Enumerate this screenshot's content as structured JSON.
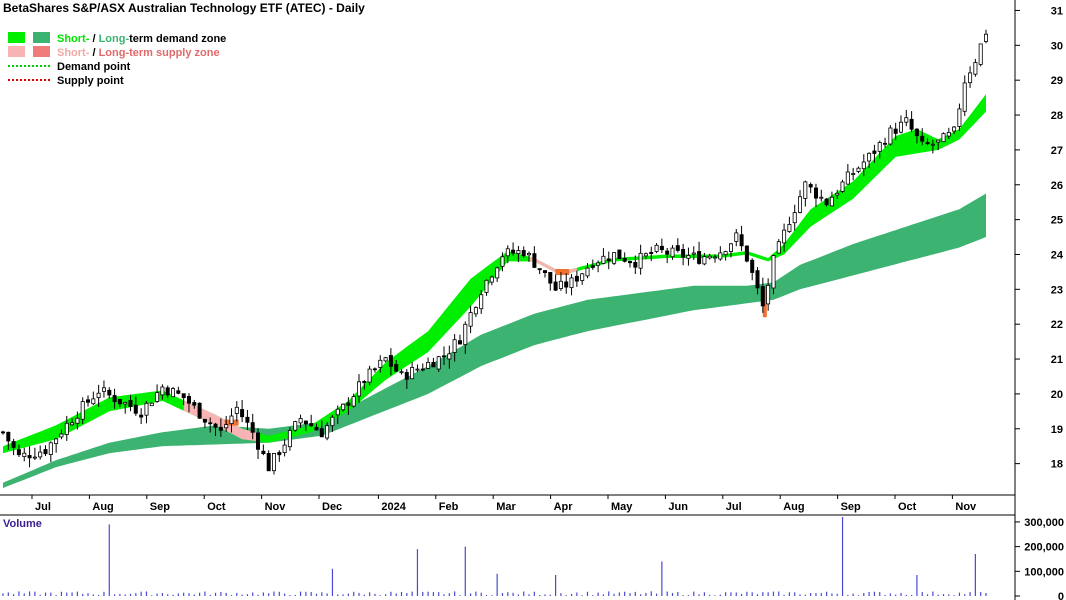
{
  "title": "BetaShares S&P/ASX Australian Technology ETF (ATEC) - Daily",
  "legend": [
    {
      "pre": "Short-",
      "mid": " / ",
      "post": "Long-",
      "tail": "term demand zone",
      "pre_color": "#00e600",
      "post_color": "#3cb371",
      "tail_color": "#000000",
      "swatch_short": "#00ee00",
      "swatch_long": "#3cb371",
      "style": "zone"
    },
    {
      "pre": "Short-",
      "mid": " / ",
      "post": "Long-",
      "tail": "term supply zone",
      "pre_color": "#f4a7a7",
      "post_color": "#e06a6a",
      "tail_color": "#e06a6a",
      "swatch_short": "#f8b4b4",
      "swatch_long": "#ef7b7b",
      "style": "zone"
    },
    {
      "label": "Demand point",
      "color": "#00cc00",
      "style": "dotted"
    },
    {
      "label": "Supply point",
      "color": "#dd0000",
      "style": "dotted"
    }
  ],
  "volume_label": "Volume",
  "colors": {
    "short_demand": "#00ee00",
    "long_demand": "#3cb371",
    "short_supply": "#f8b4b4",
    "crossover": "#f07030",
    "volume_bar": "#4a4ad0",
    "candle": "#000000"
  },
  "chart_data": {
    "type": "candlestick",
    "price_axis": {
      "ylim": [
        17.1,
        31.3
      ],
      "ticks": [
        18,
        19,
        20,
        21,
        22,
        23,
        24,
        25,
        26,
        27,
        28,
        29,
        30,
        31
      ]
    },
    "x_labels": [
      "Jul",
      "Aug",
      "Sep",
      "Oct",
      "Nov",
      "Dec",
      "2024",
      "Feb",
      "Mar",
      "Apr",
      "May",
      "Jun",
      "Jul",
      "Aug",
      "Sep",
      "Oct",
      "Nov"
    ],
    "close_path": [
      [
        0,
        18.9
      ],
      [
        3,
        18.2
      ],
      [
        8,
        18.4
      ],
      [
        13,
        19.3
      ],
      [
        18,
        20.1
      ],
      [
        22,
        19.8
      ],
      [
        26,
        19.5
      ],
      [
        30,
        20.2
      ],
      [
        34,
        19.9
      ],
      [
        38,
        19.3
      ],
      [
        41,
        18.9
      ],
      [
        44,
        19.6
      ],
      [
        47,
        18.9
      ],
      [
        50,
        17.9
      ],
      [
        53,
        18.6
      ],
      [
        56,
        19.3
      ],
      [
        60,
        18.9
      ],
      [
        64,
        19.6
      ],
      [
        68,
        20.4
      ],
      [
        72,
        21.0
      ],
      [
        75,
        20.5
      ],
      [
        79,
        20.8
      ],
      [
        83,
        21.1
      ],
      [
        86,
        21.6
      ],
      [
        90,
        23.0
      ],
      [
        94,
        24.0
      ],
      [
        98,
        24.1
      ],
      [
        101,
        23.6
      ],
      [
        104,
        23.0
      ],
      [
        107,
        23.2
      ],
      [
        111,
        23.8
      ],
      [
        115,
        24.0
      ],
      [
        119,
        23.8
      ],
      [
        123,
        24.1
      ],
      [
        127,
        24.0
      ],
      [
        131,
        23.9
      ],
      [
        135,
        24.1
      ],
      [
        138,
        24.5
      ],
      [
        140,
        23.9
      ],
      [
        143,
        22.5
      ],
      [
        145,
        23.8
      ],
      [
        148,
        25.0
      ],
      [
        151,
        26.0
      ],
      [
        155,
        25.5
      ],
      [
        159,
        26.2
      ],
      [
        163,
        26.8
      ],
      [
        167,
        27.5
      ],
      [
        170,
        27.8
      ],
      [
        173,
        27.1
      ],
      [
        176,
        27.2
      ],
      [
        179,
        27.5
      ],
      [
        181,
        29.0
      ],
      [
        183,
        29.6
      ],
      [
        185,
        30.4
      ]
    ],
    "short_zone": {
      "lower": [
        [
          0,
          18.3
        ],
        [
          10,
          18.7
        ],
        [
          20,
          19.5
        ],
        [
          30,
          19.8
        ],
        [
          40,
          19.1
        ],
        [
          45,
          18.7
        ],
        [
          50,
          18.6
        ],
        [
          58,
          18.9
        ],
        [
          65,
          19.5
        ],
        [
          72,
          20.4
        ],
        [
          80,
          21.2
        ],
        [
          88,
          22.5
        ],
        [
          95,
          23.8
        ],
        [
          100,
          23.8
        ],
        [
          105,
          23.4
        ],
        [
          110,
          23.6
        ],
        [
          115,
          23.8
        ],
        [
          125,
          23.9
        ],
        [
          135,
          23.9
        ],
        [
          140,
          24.0
        ],
        [
          144,
          23.8
        ],
        [
          147,
          24.0
        ],
        [
          152,
          24.8
        ],
        [
          160,
          25.6
        ],
        [
          168,
          26.8
        ],
        [
          172,
          26.9
        ],
        [
          176,
          27.0
        ],
        [
          180,
          27.3
        ],
        [
          185,
          28.1
        ]
      ],
      "upper": [
        [
          0,
          18.5
        ],
        [
          10,
          19.1
        ],
        [
          20,
          19.9
        ],
        [
          30,
          20.1
        ],
        [
          40,
          19.4
        ],
        [
          45,
          19.0
        ],
        [
          50,
          18.8
        ],
        [
          58,
          19.1
        ],
        [
          65,
          19.8
        ],
        [
          72,
          20.9
        ],
        [
          80,
          21.8
        ],
        [
          88,
          23.3
        ],
        [
          95,
          24.1
        ],
        [
          100,
          23.9
        ],
        [
          105,
          23.5
        ],
        [
          110,
          23.7
        ],
        [
          115,
          23.9
        ],
        [
          125,
          24.0
        ],
        [
          135,
          24.0
        ],
        [
          140,
          24.1
        ],
        [
          144,
          23.9
        ],
        [
          147,
          24.3
        ],
        [
          152,
          25.3
        ],
        [
          160,
          26.1
        ],
        [
          168,
          27.4
        ],
        [
          172,
          27.6
        ],
        [
          176,
          27.3
        ],
        [
          180,
          27.6
        ],
        [
          185,
          28.6
        ]
      ],
      "supply_segments": [
        [
          34,
          48
        ],
        [
          99,
          108
        ]
      ]
    },
    "long_zone": {
      "lower": [
        [
          0,
          17.3
        ],
        [
          10,
          17.9
        ],
        [
          20,
          18.3
        ],
        [
          30,
          18.5
        ],
        [
          40,
          18.55
        ],
        [
          50,
          18.6
        ],
        [
          60,
          18.8
        ],
        [
          70,
          19.4
        ],
        [
          80,
          20.0
        ],
        [
          90,
          20.8
        ],
        [
          100,
          21.4
        ],
        [
          110,
          21.8
        ],
        [
          120,
          22.1
        ],
        [
          130,
          22.4
        ],
        [
          140,
          22.6
        ],
        [
          145,
          22.7
        ],
        [
          150,
          23.0
        ],
        [
          160,
          23.4
        ],
        [
          170,
          23.8
        ],
        [
          180,
          24.2
        ],
        [
          185,
          24.5
        ]
      ],
      "upper": [
        [
          0,
          17.45
        ],
        [
          10,
          18.1
        ],
        [
          20,
          18.6
        ],
        [
          30,
          18.9
        ],
        [
          40,
          19.1
        ],
        [
          50,
          19.0
        ],
        [
          60,
          19.2
        ],
        [
          70,
          20.0
        ],
        [
          80,
          20.8
        ],
        [
          90,
          21.7
        ],
        [
          100,
          22.3
        ],
        [
          110,
          22.7
        ],
        [
          120,
          22.9
        ],
        [
          130,
          23.1
        ],
        [
          140,
          23.1
        ],
        [
          145,
          23.2
        ],
        [
          150,
          23.7
        ],
        [
          160,
          24.3
        ],
        [
          170,
          24.8
        ],
        [
          180,
          25.3
        ],
        [
          185,
          25.75
        ]
      ]
    },
    "volume": {
      "ticks": [
        0,
        100000,
        200000,
        300000
      ],
      "tick_labels": [
        "0",
        "100,000",
        "200,000",
        "300,000"
      ],
      "ylim": [
        0,
        320000
      ],
      "spikes": [
        [
          20,
          290000
        ],
        [
          62,
          110000
        ],
        [
          78,
          190000
        ],
        [
          87,
          200000
        ],
        [
          93,
          90000
        ],
        [
          104,
          85000
        ],
        [
          124,
          140000
        ],
        [
          158,
          320000
        ],
        [
          172,
          85000
        ],
        [
          183,
          170000
        ]
      ]
    }
  }
}
